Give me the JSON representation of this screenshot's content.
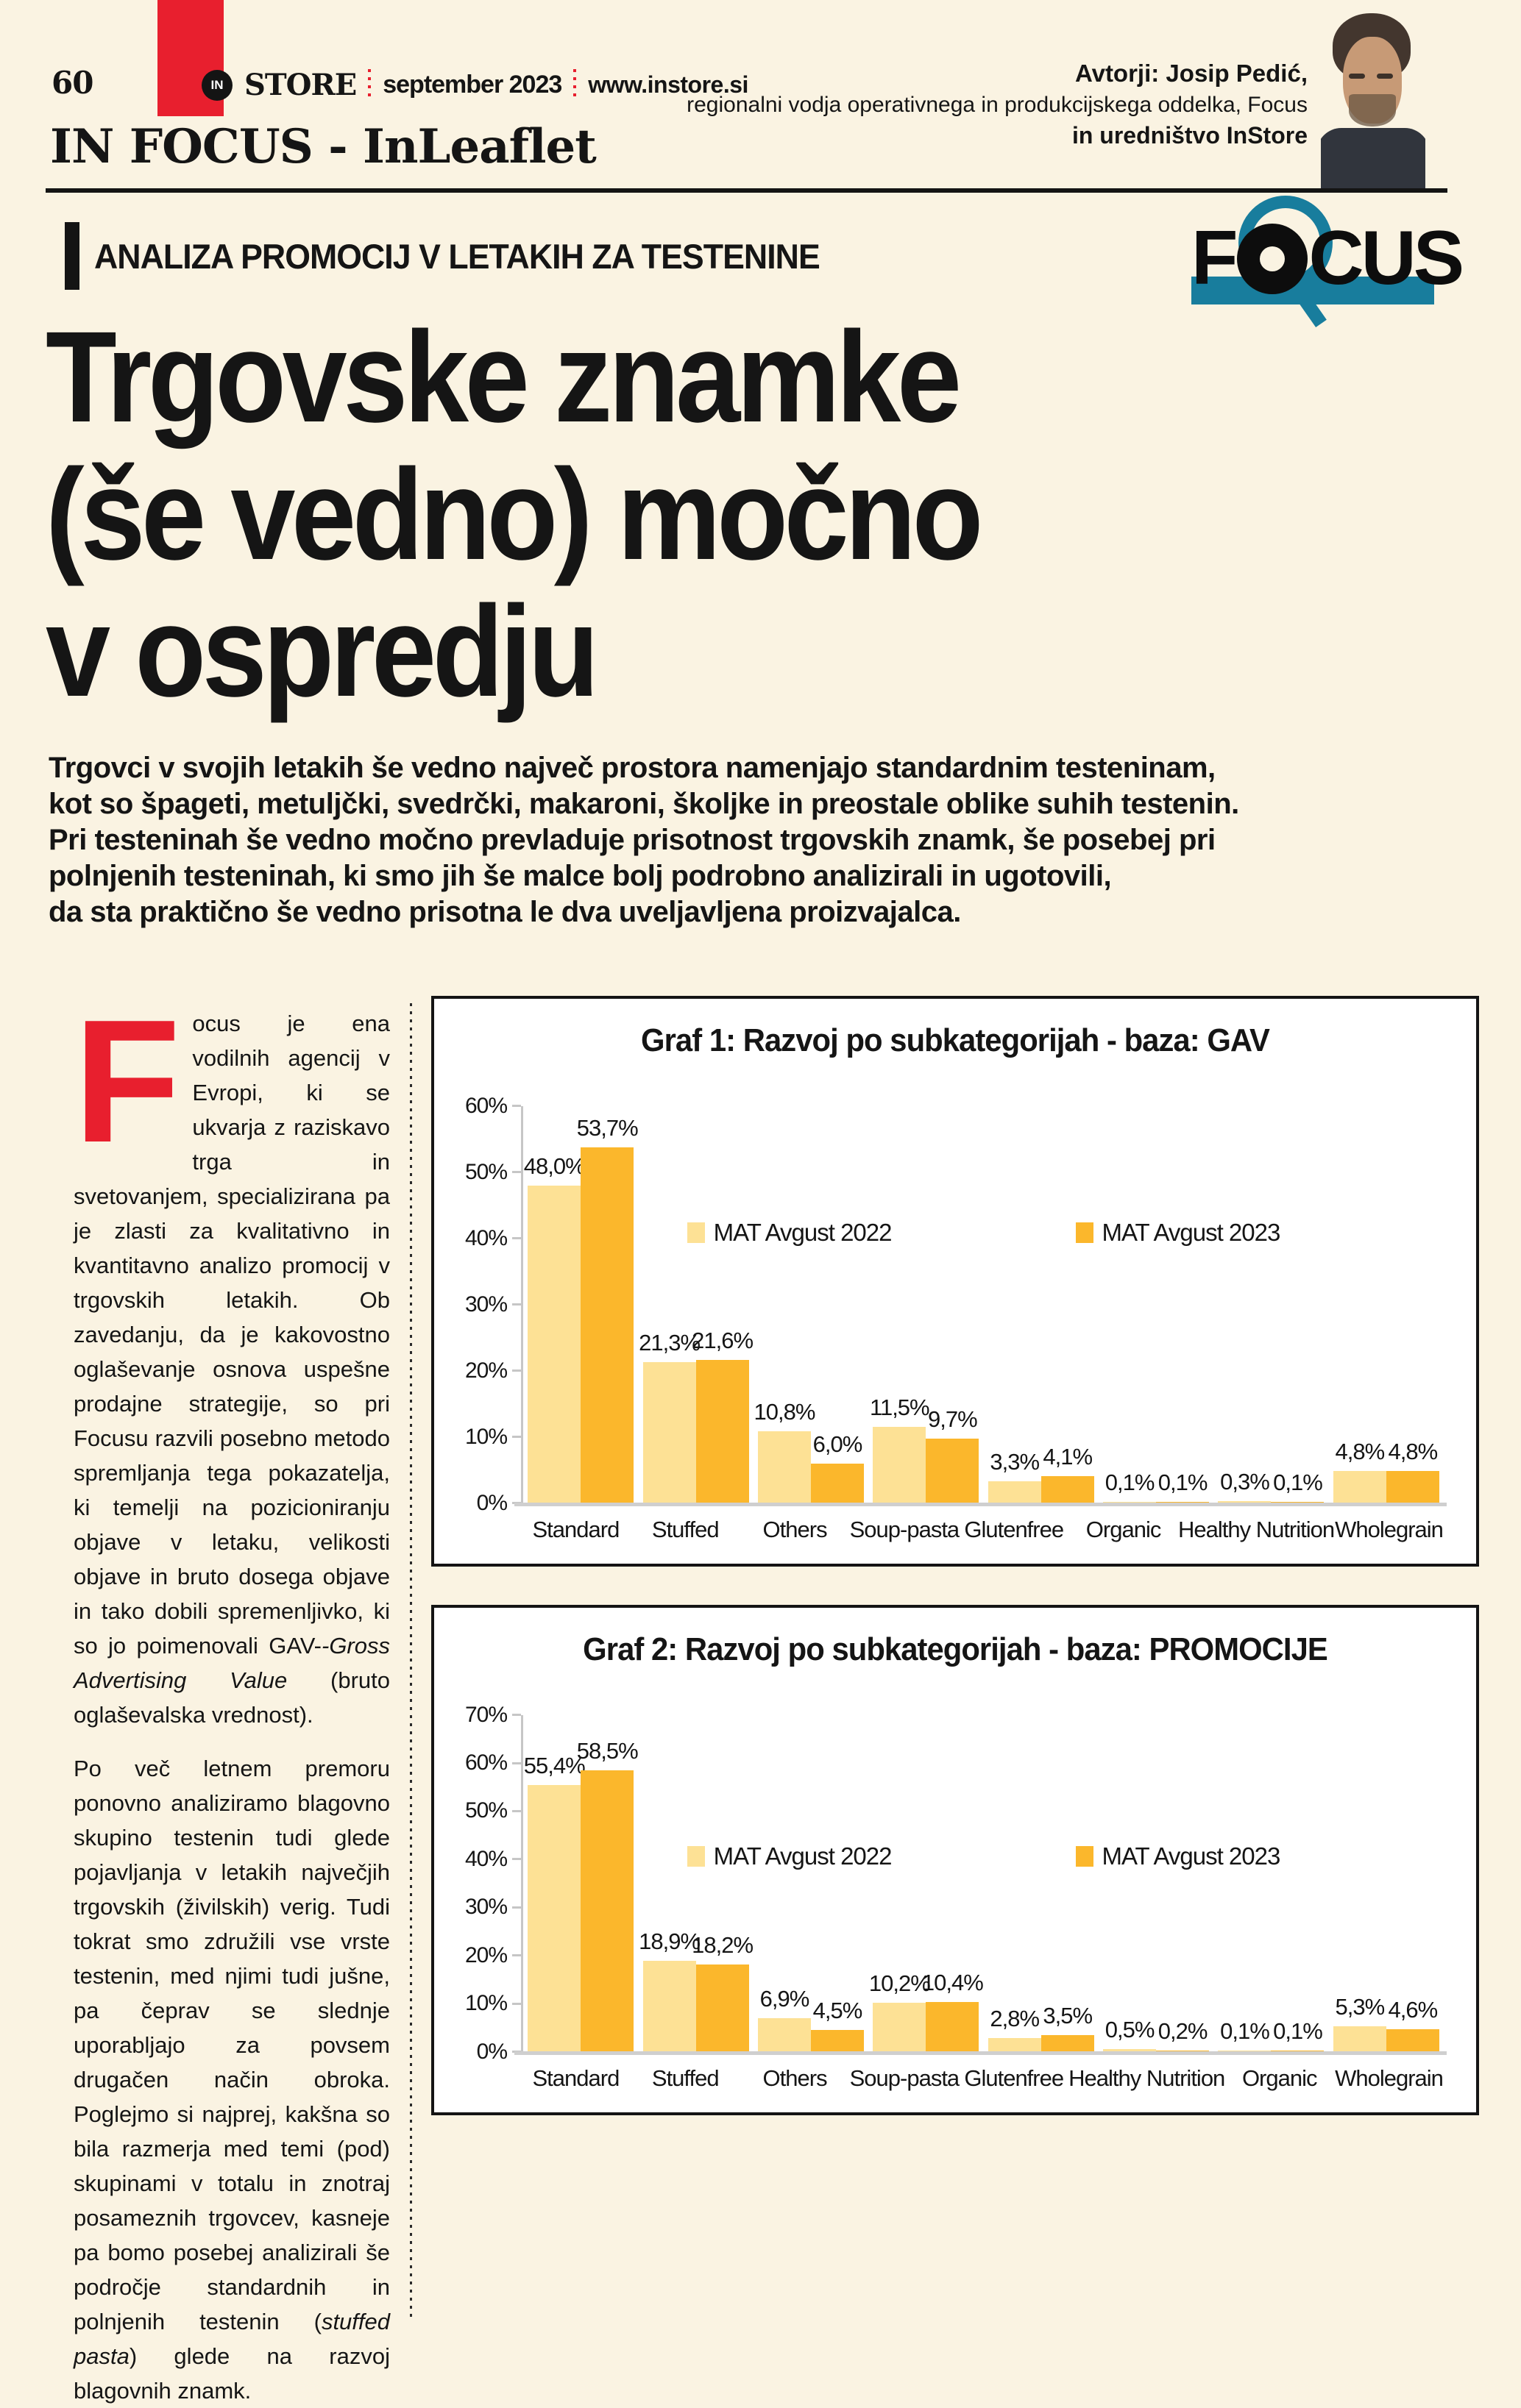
{
  "page": {
    "background": "#faf3e2",
    "number": "60"
  },
  "header": {
    "magazine_prefix": "IN",
    "magazine": "STORE",
    "issue": "september 2023",
    "url": "www.instore.si",
    "section": "IN FOCUS - InLeaflet",
    "authors_line1": "Avtorji: Josip Pedić,",
    "authors_line2": "regionalni vodja operativnega in produkcijskega oddelka, Focus",
    "authors_line3": "in uredništvo InStore"
  },
  "kicker": "ANALIZA PROMOCIJ V LETAKIH ZA TESTENINE",
  "focus_logo": {
    "f": "F",
    "cus": "CUS",
    "teal": "#187d9d"
  },
  "headline": "Trgovske znamke\n(še vedno) močno\nv ospredju",
  "intro": "Trgovci v svojih letakih še vedno največ prostora namenjajo standardnim testeninam,\nkot so špageti, metuljčki, svedrčki, makaroni, školjke in preostale oblike suhih testenin.\nPri testeninah še vedno močno prevladuje prisotnost trgovskih znamk, še posebej pri\npolnjenih testeninah, ki smo jih še malce bolj podrobno analizirali in ugotovili,\nda sta praktično še vedno prisotna le dva uveljavljena proizvajalca.",
  "article": {
    "para1": {
      "drop_cap": "F",
      "before_italic": "ocus je ena vodilnih agencij v Evropi, ki se ukvarja z raziskavo trga in svetovanjem, specializirana pa je zlasti za kvalitativno in kvantitavno analizo promocij v trgovskih letakih. Ob zavedanju, da je kakovostno oglaševanje osnova uspešne prodajne strategije, so pri Focusu razvili posebno metodo spremljanja tega pokazatelja, ki temelji na pozicioniranju objave v letaku, velikosti objave in bruto dosega objave in tako dobili spremenljivko, ki so jo poimenovali GAV-",
      "italic": "-Gross Advertising Value",
      "after_italic": " (bruto oglaševalska vrednost)."
    },
    "para2": {
      "before_italic": "Po več letnem premoru ponovno analiziramo blagovno skupino testenin tudi glede pojavljanja v letakih največjih trgovskih (živilskih) verig. Tudi tokrat smo združili vse vrste testenin, med njimi tudi jušne, pa čeprav se slednje uporabljajo za povsem drugačen način obroka. Poglejmo si najprej, kakšna so bila razmerja med temi (pod) skupinami v totalu in znotraj posameznih trgovcev, kasneje pa bomo posebej analizirali še področje standardnih in polnjenih testenin (",
      "italic": "stuffed pasta",
      "after_italic": ") glede na razvoj blagovnih znamk."
    }
  },
  "chart_data": [
    {
      "type": "bar",
      "title": "Graf 1: Razvoj po subkategorijah - baza: GAV",
      "categories": [
        "Standard",
        "Stuffed",
        "Others",
        "Soup-pasta",
        "Glutenfree",
        "Organic",
        "Healthy Nutrition",
        "Wholegrain"
      ],
      "series": [
        {
          "name": "MAT Avgust 2022",
          "color": "#fde195",
          "values": [
            48.0,
            21.3,
            10.8,
            11.5,
            3.3,
            0.1,
            0.3,
            4.8
          ]
        },
        {
          "name": "MAT Avgust 2023",
          "color": "#fbb72c",
          "values": [
            53.7,
            21.6,
            6.0,
            9.7,
            4.1,
            0.1,
            0.1,
            4.8
          ]
        }
      ],
      "ylabel": "",
      "xlabel": "",
      "ylim": [
        0,
        60
      ],
      "ytick_step": 10,
      "grid": false,
      "legend_position": "center-inside",
      "legend_level_pct": 40,
      "value_label_format": "decimal-comma-percent"
    },
    {
      "type": "bar",
      "title": "Graf 2: Razvoj po subkategorijah - baza: PROMOCIJE",
      "categories": [
        "Standard",
        "Stuffed",
        "Others",
        "Soup-pasta",
        "Glutenfree",
        "Healthy Nutrition",
        "Organic",
        "Wholegrain"
      ],
      "series": [
        {
          "name": "MAT Avgust 2022",
          "color": "#fde195",
          "values": [
            55.4,
            18.9,
            6.9,
            10.2,
            2.8,
            0.5,
            0.1,
            5.3
          ]
        },
        {
          "name": "MAT Avgust 2023",
          "color": "#fbb72c",
          "values": [
            58.5,
            18.2,
            4.5,
            10.4,
            3.5,
            0.2,
            0.1,
            4.6
          ]
        }
      ],
      "ylabel": "",
      "xlabel": "",
      "ylim": [
        0,
        70
      ],
      "ytick_step": 10,
      "grid": false,
      "legend_position": "center-inside",
      "legend_level_pct": 40,
      "value_label_format": "decimal-comma-percent"
    }
  ]
}
